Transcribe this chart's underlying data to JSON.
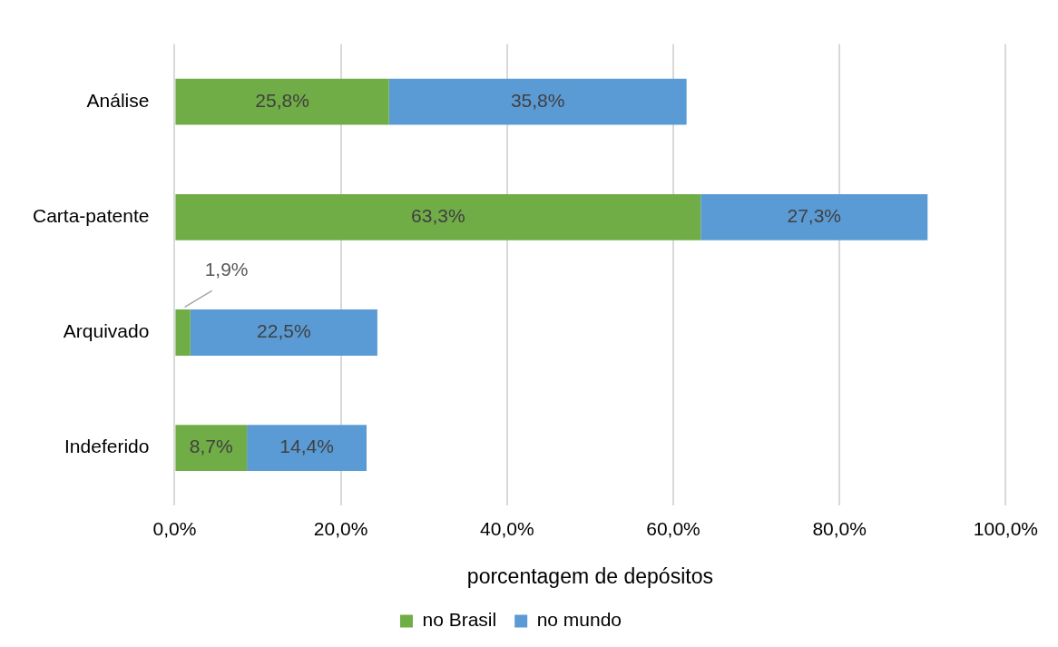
{
  "chart_data": {
    "type": "bar",
    "orientation": "horizontal",
    "stacked": true,
    "categories": [
      "Análise",
      "Carta-patente",
      "Arquivado",
      "Indeferido"
    ],
    "series": [
      {
        "name": "no Brasil",
        "color": "#70ad47",
        "values": [
          25.8,
          63.3,
          1.9,
          8.7
        ],
        "value_labels": [
          "25,8%",
          "63,3%",
          "1,9%",
          "8,7%"
        ]
      },
      {
        "name": "no mundo",
        "color": "#5b9bd5",
        "values": [
          35.8,
          27.3,
          22.5,
          14.4
        ],
        "value_labels": [
          "35,8%",
          "27,3%",
          "22,5%",
          "14,4%"
        ]
      }
    ],
    "xlabel": "porcentagem de depósitos",
    "xlim": [
      0,
      100
    ],
    "xticks": [
      {
        "value": 0,
        "label": "0,0%"
      },
      {
        "value": 20,
        "label": "20,0%"
      },
      {
        "value": 40,
        "label": "40,0%"
      },
      {
        "value": 60,
        "label": "60,0%"
      },
      {
        "value": 80,
        "label": "80,0%"
      },
      {
        "value": 100,
        "label": "100,0%"
      }
    ],
    "grid": "x",
    "legend": "bottom"
  }
}
